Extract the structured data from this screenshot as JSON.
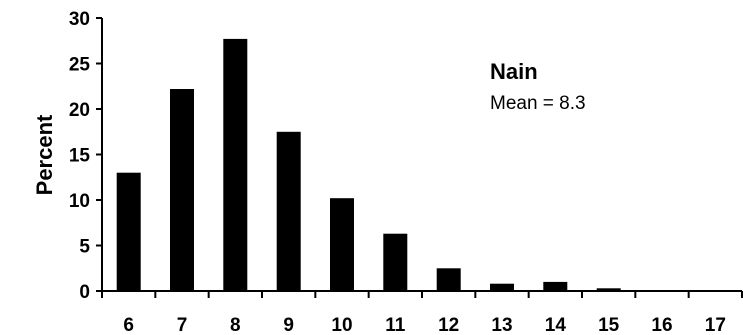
{
  "chart_data": {
    "type": "bar",
    "categories": [
      "6",
      "7",
      "8",
      "9",
      "10",
      "11",
      "12",
      "13",
      "14",
      "15",
      "16",
      "17"
    ],
    "values": [
      13.0,
      22.2,
      27.7,
      17.5,
      10.2,
      6.3,
      2.5,
      0.8,
      1.0,
      0.3,
      0.0,
      0.0
    ],
    "title": "",
    "xlabel": "",
    "ylabel": "Percent",
    "ylim": [
      0,
      30
    ],
    "yticks": [
      "0",
      "5",
      "10",
      "15",
      "20",
      "25",
      "30"
    ],
    "annotation": {
      "title": "Nain",
      "subtitle": "Mean = 8.3"
    },
    "bar_color": "#000000",
    "grid": false,
    "legend": "none"
  }
}
